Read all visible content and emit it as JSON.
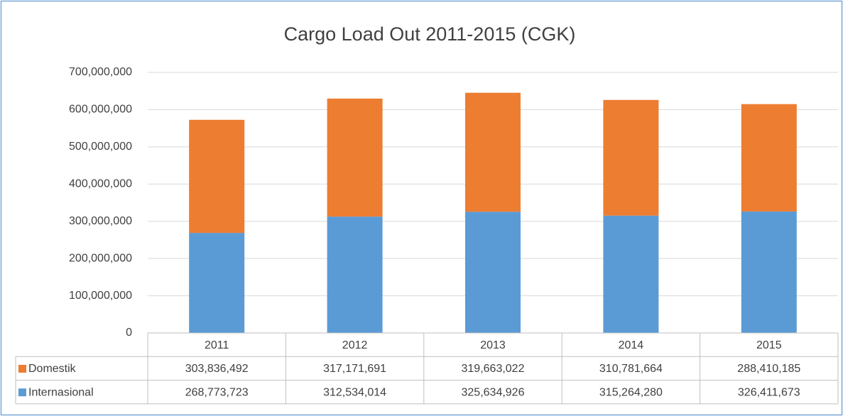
{
  "chart_data": {
    "type": "stacked_bar",
    "title": "Cargo Load Out 2011-2015 (CGK)",
    "categories": [
      "2011",
      "2012",
      "2013",
      "2014",
      "2015"
    ],
    "series": [
      {
        "name": "Domestik",
        "color": "#ed7d31",
        "values": [
          303836492,
          317171691,
          319663022,
          310781664,
          288410185
        ],
        "value_labels": [
          "303,836,492",
          "317,171,691",
          "319,663,022",
          "310,781,664",
          "288,410,185"
        ]
      },
      {
        "name": "Internasional",
        "color": "#5b9bd5",
        "values": [
          268773723,
          312534014,
          325634926,
          315264280,
          326411673
        ],
        "value_labels": [
          "268,773,723",
          "312,534,014",
          "325,634,926",
          "315,264,280",
          "326,411,673"
        ]
      }
    ],
    "ylim": [
      0,
      700000000
    ],
    "yticks": [
      0,
      {
        "value": 100000000,
        "label": "100,000,000"
      },
      {
        "value": 200000000,
        "label": "200,000,000"
      },
      {
        "value": 300000000,
        "label": "300,000,000"
      },
      {
        "value": 400000000,
        "label": "400,000,000"
      },
      {
        "value": 500000000,
        "label": "500,000,000"
      },
      {
        "value": 600000000,
        "label": "600,000,000"
      },
      {
        "value": 700000000,
        "label": "700,000,000"
      }
    ],
    "grid": true
  }
}
